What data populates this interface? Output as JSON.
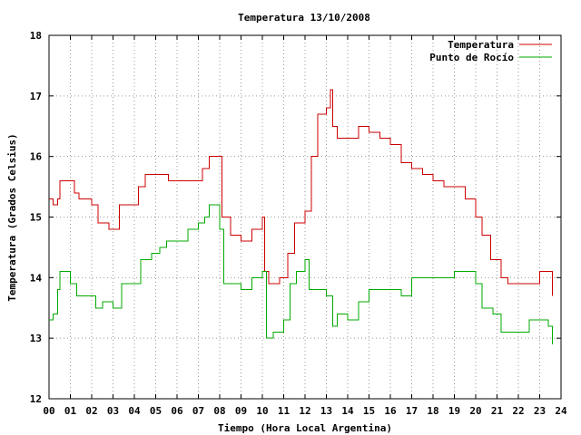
{
  "chart_data": {
    "type": "line",
    "title": "Temperatura 13/10/2008",
    "xlabel": "Tiempo (Hora Local Argentina)",
    "ylabel": "Temperatura (Grados Celsius)",
    "xlim": [
      0,
      24
    ],
    "ylim": [
      12,
      18
    ],
    "x_ticks": [
      0,
      1,
      2,
      3,
      4,
      5,
      6,
      7,
      8,
      9,
      10,
      11,
      12,
      13,
      14,
      15,
      16,
      17,
      18,
      19,
      20,
      21,
      22,
      23,
      24
    ],
    "x_tick_labels": [
      "00",
      "01",
      "02",
      "03",
      "04",
      "05",
      "06",
      "07",
      "08",
      "09",
      "10",
      "11",
      "12",
      "13",
      "14",
      "15",
      "16",
      "17",
      "18",
      "19",
      "20",
      "21",
      "22",
      "23",
      "24"
    ],
    "y_ticks": [
      12,
      13,
      14,
      15,
      16,
      17,
      18
    ],
    "y_tick_labels": [
      "12",
      "13",
      "14",
      "15",
      "16",
      "17",
      "18"
    ],
    "grid": true,
    "legend_position": "top-right",
    "series": [
      {
        "name": "Temperatura",
        "color": "#cc0000",
        "points": [
          [
            0,
            15.3
          ],
          [
            0.2,
            15.2
          ],
          [
            0.4,
            15.3
          ],
          [
            0.5,
            15.6
          ],
          [
            1.0,
            15.6
          ],
          [
            1.2,
            15.4
          ],
          [
            1.4,
            15.3
          ],
          [
            2.0,
            15.2
          ],
          [
            2.3,
            14.9
          ],
          [
            2.8,
            14.8
          ],
          [
            3.3,
            15.2
          ],
          [
            4.0,
            15.2
          ],
          [
            4.2,
            15.5
          ],
          [
            4.5,
            15.7
          ],
          [
            5.5,
            15.7
          ],
          [
            5.6,
            15.6
          ],
          [
            6.5,
            15.6
          ],
          [
            7.2,
            15.8
          ],
          [
            7.5,
            16.0
          ],
          [
            8.0,
            16.0
          ],
          [
            8.1,
            15.0
          ],
          [
            8.5,
            14.7
          ],
          [
            9.0,
            14.6
          ],
          [
            9.5,
            14.8
          ],
          [
            10.0,
            15.0
          ],
          [
            10.1,
            14.1
          ],
          [
            10.3,
            13.9
          ],
          [
            10.8,
            14.0
          ],
          [
            11.2,
            14.4
          ],
          [
            11.5,
            14.9
          ],
          [
            12.0,
            15.1
          ],
          [
            12.3,
            16.0
          ],
          [
            12.6,
            16.7
          ],
          [
            13.0,
            16.8
          ],
          [
            13.2,
            17.1
          ],
          [
            13.3,
            16.5
          ],
          [
            13.5,
            16.3
          ],
          [
            14.3,
            16.3
          ],
          [
            14.5,
            16.5
          ],
          [
            15.0,
            16.4
          ],
          [
            15.5,
            16.3
          ],
          [
            16.0,
            16.2
          ],
          [
            16.5,
            15.9
          ],
          [
            17.0,
            15.8
          ],
          [
            17.5,
            15.7
          ],
          [
            18.0,
            15.6
          ],
          [
            18.5,
            15.5
          ],
          [
            19.0,
            15.5
          ],
          [
            19.5,
            15.3
          ],
          [
            20.0,
            15.0
          ],
          [
            20.3,
            14.7
          ],
          [
            20.7,
            14.3
          ],
          [
            21.2,
            14.0
          ],
          [
            21.5,
            13.9
          ],
          [
            22.0,
            13.9
          ],
          [
            22.5,
            13.9
          ],
          [
            23.0,
            14.1
          ],
          [
            23.4,
            14.1
          ],
          [
            23.6,
            13.7
          ]
        ]
      },
      {
        "name": "Punto de Rocío",
        "color": "#00aa00",
        "points": [
          [
            0,
            13.3
          ],
          [
            0.2,
            13.4
          ],
          [
            0.4,
            13.8
          ],
          [
            0.5,
            14.1
          ],
          [
            1.0,
            13.9
          ],
          [
            1.3,
            13.7
          ],
          [
            1.8,
            13.7
          ],
          [
            2.2,
            13.5
          ],
          [
            2.5,
            13.6
          ],
          [
            3.0,
            13.5
          ],
          [
            3.4,
            13.9
          ],
          [
            4.0,
            13.9
          ],
          [
            4.3,
            14.3
          ],
          [
            4.8,
            14.4
          ],
          [
            5.2,
            14.5
          ],
          [
            5.5,
            14.6
          ],
          [
            6.0,
            14.6
          ],
          [
            6.5,
            14.8
          ],
          [
            7.0,
            14.9
          ],
          [
            7.3,
            15.0
          ],
          [
            7.5,
            15.2
          ],
          [
            8.0,
            14.8
          ],
          [
            8.2,
            13.9
          ],
          [
            8.5,
            13.9
          ],
          [
            9.0,
            13.8
          ],
          [
            9.5,
            14.0
          ],
          [
            10.0,
            14.1
          ],
          [
            10.2,
            13.0
          ],
          [
            10.5,
            13.1
          ],
          [
            11.0,
            13.3
          ],
          [
            11.3,
            13.9
          ],
          [
            11.6,
            14.1
          ],
          [
            12.0,
            14.3
          ],
          [
            12.2,
            13.8
          ],
          [
            12.6,
            13.8
          ],
          [
            13.0,
            13.7
          ],
          [
            13.3,
            13.2
          ],
          [
            13.5,
            13.4
          ],
          [
            14.0,
            13.3
          ],
          [
            14.5,
            13.6
          ],
          [
            15.0,
            13.8
          ],
          [
            15.5,
            13.8
          ],
          [
            16.0,
            13.8
          ],
          [
            16.5,
            13.7
          ],
          [
            17.0,
            14.0
          ],
          [
            17.5,
            14.0
          ],
          [
            18.0,
            14.0
          ],
          [
            18.5,
            14.0
          ],
          [
            19.0,
            14.1
          ],
          [
            19.5,
            14.1
          ],
          [
            20.0,
            13.9
          ],
          [
            20.3,
            13.5
          ],
          [
            20.8,
            13.4
          ],
          [
            21.2,
            13.1
          ],
          [
            21.5,
            13.1
          ],
          [
            22.0,
            13.1
          ],
          [
            22.5,
            13.3
          ],
          [
            23.0,
            13.3
          ],
          [
            23.4,
            13.2
          ],
          [
            23.6,
            12.9
          ]
        ]
      }
    ]
  }
}
